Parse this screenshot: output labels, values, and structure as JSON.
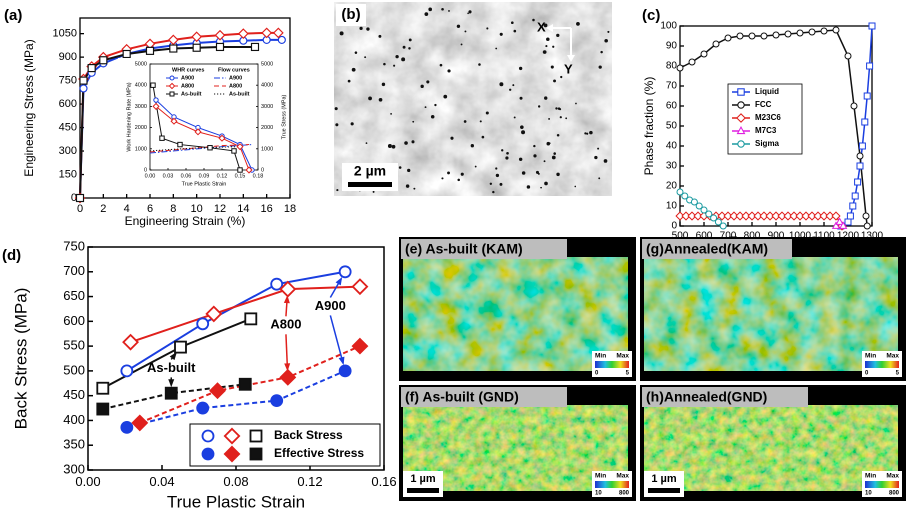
{
  "chart_data": [
    {
      "type": "line",
      "label": "(a)",
      "xlabel": "Engineering Strain (%)",
      "ylabel": "Engineering Stress (MPa)",
      "xlim": [
        0,
        18
      ],
      "xticks": [
        0,
        2,
        4,
        6,
        8,
        10,
        12,
        14,
        16,
        18
      ],
      "ylim": [
        0,
        1150
      ],
      "yticks": [
        0,
        150,
        300,
        450,
        600,
        750,
        900,
        1050
      ],
      "series": [
        {
          "color": "#1a3ee0",
          "marker": "circle",
          "x": [
            0,
            0.3,
            1,
            2,
            4,
            6,
            8,
            10,
            12,
            14,
            16,
            17.3
          ],
          "values": [
            0,
            700,
            800,
            860,
            920,
            955,
            975,
            990,
            1000,
            1005,
            1010,
            1010
          ]
        },
        {
          "color": "#e0201c",
          "marker": "diamond",
          "x": [
            0,
            0.3,
            1,
            2,
            4,
            6,
            8,
            10,
            12,
            14,
            16,
            17
          ],
          "values": [
            0,
            760,
            840,
            900,
            950,
            985,
            1010,
            1030,
            1040,
            1050,
            1055,
            1055
          ]
        },
        {
          "color": "#111111",
          "marker": "square",
          "x": [
            0,
            0.3,
            1,
            2,
            4,
            6,
            8,
            10,
            12,
            15
          ],
          "values": [
            0,
            750,
            830,
            880,
            920,
            940,
            955,
            960,
            965,
            965
          ]
        }
      ]
    },
    {
      "type": "line",
      "xlabel": "True Plastic Strain",
      "ylabel": "Work Hardening Rate (MPa)",
      "y2label": "True Stress (MPa)",
      "legend_titles": [
        "WHR curves",
        "Flow curves"
      ],
      "xlim": [
        0,
        0.18
      ],
      "xticks": [
        {
          "value": 0,
          "label": "0.00"
        },
        0.03,
        0.06,
        0.09,
        0.12,
        0.15,
        0.18
      ],
      "ylim": [
        0,
        5000
      ],
      "yticks": [
        0,
        1000,
        2000,
        3000,
        4000,
        5000
      ],
      "y2lim": [
        0,
        5000
      ],
      "y2ticks": [
        0,
        1000,
        2000,
        3000,
        4000,
        5000
      ],
      "series": [
        {
          "name": "A900",
          "color": "#1a3ee0",
          "marker": "circle",
          "line": "solid",
          "x": [
            0.01,
            0.04,
            0.08,
            0.12,
            0.15,
            0.17
          ],
          "values": [
            3300,
            2500,
            2000,
            1600,
            1200,
            0
          ]
        },
        {
          "name": "A800",
          "color": "#e0201c",
          "marker": "diamond",
          "line": "solid",
          "x": [
            0.01,
            0.04,
            0.08,
            0.12,
            0.15,
            0.165
          ],
          "values": [
            3000,
            2300,
            1800,
            1500,
            1100,
            0
          ]
        },
        {
          "name": "As-built",
          "color": "#111111",
          "marker": "square",
          "line": "solid",
          "x": [
            0.005,
            0.02,
            0.05,
            0.1,
            0.14,
            0.15
          ],
          "values": [
            4000,
            1500,
            1200,
            1050,
            900,
            0
          ]
        },
        {
          "name": "A900",
          "color": "#1a3ee0",
          "line": "dashdot",
          "axis": "y2",
          "x": [
            0,
            0.04,
            0.08,
            0.12,
            0.17
          ],
          "values": [
            800,
            900,
            1000,
            1100,
            1200
          ]
        },
        {
          "name": "A800",
          "color": "#e0201c",
          "line": "dash",
          "axis": "y2",
          "x": [
            0,
            0.04,
            0.08,
            0.12,
            0.165
          ],
          "values": [
            850,
            950,
            1050,
            1150,
            1200
          ]
        },
        {
          "name": "As-built",
          "color": "#111111",
          "line": "dot",
          "axis": "y2",
          "x": [
            0,
            0.04,
            0.08,
            0.12,
            0.15
          ],
          "values": [
            900,
            980,
            1040,
            1080,
            1100
          ]
        }
      ]
    },
    {
      "type": "line",
      "label": "(c)",
      "xlabel": "Temperature (°C)",
      "ylabel": "Phase fraction (%)",
      "xlim": [
        500,
        1300
      ],
      "xticks": [
        500,
        600,
        700,
        800,
        900,
        1000,
        1100,
        1200,
        1300
      ],
      "ylim": [
        0,
        100
      ],
      "yticks": [
        0,
        10,
        20,
        30,
        40,
        50,
        60,
        70,
        80,
        90,
        100
      ],
      "series": [
        {
          "name": "Liquid",
          "color": "#1a3ee0",
          "marker": "square",
          "x": [
            1170,
            1200,
            1210,
            1220,
            1230,
            1240,
            1250,
            1260,
            1270,
            1280,
            1290,
            1300
          ],
          "values": [
            0,
            2,
            5,
            10,
            15,
            22,
            30,
            40,
            52,
            65,
            80,
            100
          ]
        },
        {
          "name": "FCC",
          "color": "#111111",
          "marker": "circle",
          "x": [
            500,
            550,
            600,
            650,
            700,
            750,
            800,
            850,
            900,
            950,
            1000,
            1050,
            1100,
            1150,
            1200,
            1225,
            1250,
            1275,
            1280
          ],
          "values": [
            79,
            82,
            86,
            91,
            94,
            95,
            95,
            95,
            95.5,
            96,
            96.5,
            97,
            97.5,
            98,
            85,
            60,
            35,
            5,
            0
          ]
        },
        {
          "name": "M23C6",
          "color": "#e0201c",
          "marker": "diamond",
          "x": [
            500,
            525,
            550,
            575,
            600,
            625,
            650,
            675,
            700,
            725,
            750,
            775,
            800,
            825,
            850,
            875,
            900,
            925,
            950,
            975,
            1000,
            1025,
            1050,
            1075,
            1100,
            1125,
            1150,
            1175
          ],
          "values": [
            5,
            5,
            5,
            5,
            5,
            5,
            5,
            5,
            5,
            5,
            5,
            5,
            5,
            5,
            5,
            5,
            5,
            5,
            5,
            5,
            5,
            5,
            5,
            5,
            5,
            5,
            5,
            0
          ]
        },
        {
          "name": "M7C3",
          "color": "#e020e0",
          "marker": "triangle",
          "x": [
            1150,
            1165,
            1180
          ],
          "values": [
            0,
            2,
            0
          ]
        },
        {
          "name": "Sigma",
          "color": "#1a9aa0",
          "marker": "circle",
          "x": [
            500,
            520,
            540,
            560,
            580,
            600,
            620,
            640,
            660,
            680
          ],
          "values": [
            17,
            15,
            13,
            12,
            10,
            8,
            6,
            4,
            2,
            0
          ]
        }
      ]
    },
    {
      "type": "line",
      "label": "(d)",
      "xlabel": "True Plastic Strain",
      "ylabel": "Back Stress (MPa)",
      "xlim": [
        0,
        0.16
      ],
      "xticks": [
        {
          "value": 0,
          "label": "0.00"
        },
        0.04,
        0.08,
        0.12,
        0.16
      ],
      "ylim": [
        300,
        750
      ],
      "yticks": [
        300,
        350,
        400,
        450,
        500,
        550,
        600,
        650,
        700,
        750
      ],
      "legend": [
        "Back Stress",
        "Effective Stress"
      ],
      "annotations": [
        {
          "text": "A800",
          "color": "#e0201c"
        },
        {
          "text": "A900",
          "color": "#1a3ee0"
        },
        {
          "text": "As-built",
          "color": "#111111"
        }
      ],
      "series": [
        {
          "color": "#1a3ee0",
          "marker": "circle",
          "line": "solid",
          "x": [
            0.021,
            0.062,
            0.102,
            0.139
          ],
          "values": [
            500,
            595,
            675,
            700
          ]
        },
        {
          "color": "#e0201c",
          "marker": "diamond",
          "line": "solid",
          "x": [
            0.023,
            0.068,
            0.108,
            0.147
          ],
          "values": [
            558,
            615,
            665,
            670
          ]
        },
        {
          "color": "#111111",
          "marker": "square",
          "line": "solid",
          "x": [
            0.008,
            0.05,
            0.088
          ],
          "values": [
            465,
            548,
            605
          ]
        },
        {
          "color": "#1a3ee0",
          "marker": "circle",
          "filled": true,
          "line": "dash",
          "x": [
            0.021,
            0.062,
            0.102,
            0.139
          ],
          "values": [
            386,
            425,
            440,
            500
          ]
        },
        {
          "color": "#e0201c",
          "marker": "diamond",
          "filled": true,
          "line": "dash",
          "x": [
            0.028,
            0.07,
            0.108,
            0.147
          ],
          "values": [
            395,
            460,
            487,
            550
          ]
        },
        {
          "color": "#111111",
          "marker": "square",
          "filled": true,
          "line": "dash",
          "x": [
            0.008,
            0.045,
            0.085
          ],
          "values": [
            423,
            455,
            473
          ]
        }
      ]
    }
  ],
  "images": {
    "sem": {
      "label": "(b)",
      "scale": "2 µm",
      "axes": [
        "X",
        "Y"
      ]
    },
    "maps": [
      {
        "label": "(e) As-built (KAM)",
        "min": "Min",
        "max": "Max",
        "lo": "0",
        "hi": "5"
      },
      {
        "label": "(g)Annealed(KAM)",
        "min": "Min",
        "max": "Max",
        "lo": "0",
        "hi": "5"
      },
      {
        "label": "(f) As-built (GND)",
        "min": "Min",
        "max": "Max",
        "lo": "10",
        "hi": "800",
        "scale": "1 µm"
      },
      {
        "label": "(h)Annealed(GND)",
        "min": "Min",
        "max": "Max",
        "lo": "10",
        "hi": "800",
        "scale": "1 µm"
      }
    ]
  }
}
